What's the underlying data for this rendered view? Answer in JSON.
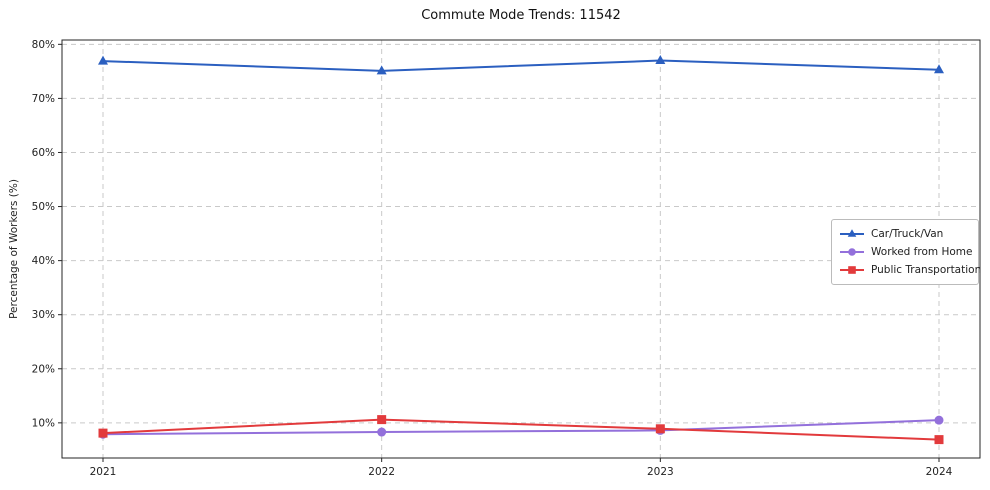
{
  "title": "Commute Mode Trends: 11542",
  "chart_data": {
    "type": "line",
    "title": "Commute Mode Trends: 11542",
    "xlabel": "",
    "ylabel": "Percentage of Workers (%)",
    "categories": [
      "2021",
      "2022",
      "2023",
      "2024"
    ],
    "series": [
      {
        "name": "Car/Truck/Van",
        "color": "#2b5fc0",
        "marker": "triangle",
        "values": [
          76.9,
          75.1,
          77.0,
          75.3
        ]
      },
      {
        "name": "Worked from Home",
        "color": "#9370db",
        "marker": "circle",
        "values": [
          7.9,
          8.3,
          8.6,
          10.5
        ]
      },
      {
        "name": "Public Transportation",
        "color": "#e23a3c",
        "marker": "square",
        "values": [
          8.1,
          10.6,
          8.9,
          6.9
        ]
      }
    ],
    "y_ticks": [
      10,
      20,
      30,
      40,
      50,
      60,
      70,
      80
    ],
    "y_tick_suffix": "%",
    "ylim": [
      3.5,
      80.8
    ],
    "grid": true,
    "grid_style": "dashed",
    "legend_position": "center-right"
  },
  "colors": {
    "background": "#ffffff",
    "grid": "#c9c9c9",
    "axis": "#262626",
    "tick_text": "#222222",
    "title_text": "#111111"
  }
}
